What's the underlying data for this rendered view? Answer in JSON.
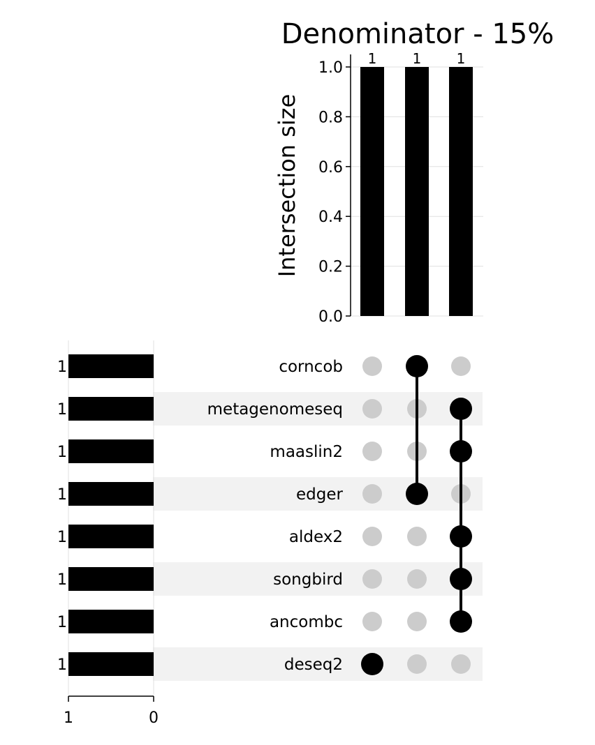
{
  "chart_data": {
    "type": "upset",
    "title": "Denominator - 15%",
    "ylabel": "Intersection size",
    "ylim": [
      0,
      1.0
    ],
    "yticks": [
      "0.0",
      "0.2",
      "0.4",
      "0.6",
      "0.8",
      "1.0"
    ],
    "grid": true,
    "sets": [
      "corncob",
      "metagenomeseq",
      "maaslin2",
      "edger",
      "aldex2",
      "songbird",
      "ancombc",
      "deseq2"
    ],
    "set_sizes": [
      1,
      1,
      1,
      1,
      1,
      1,
      1,
      1
    ],
    "set_size_labels": [
      "1",
      "1",
      "1",
      "1",
      "1",
      "1",
      "1",
      "1"
    ],
    "set_size_xlim": [
      1,
      0
    ],
    "set_size_ticks": [
      "1",
      "0"
    ],
    "intersections": [
      {
        "members": [
          "deseq2"
        ],
        "size": 1,
        "label": "1"
      },
      {
        "members": [
          "corncob",
          "edger"
        ],
        "size": 1,
        "label": "1"
      },
      {
        "members": [
          "metagenomeseq",
          "maaslin2",
          "aldex2",
          "songbird",
          "ancombc"
        ],
        "size": 1,
        "label": "1"
      }
    ],
    "colors": {
      "bar": "#000000",
      "dot_active": "#000000",
      "dot_inactive": "#cccccc",
      "stripe": "#f2f2f2",
      "grid": "#e0e0e0"
    }
  }
}
